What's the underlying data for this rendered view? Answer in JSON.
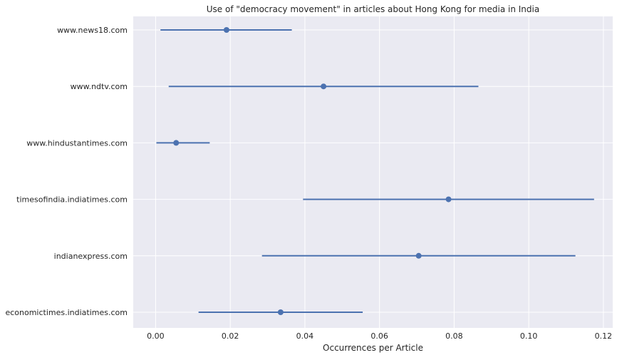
{
  "chart_data": {
    "type": "scatter",
    "subtype": "dot-with-interval",
    "orientation": "horizontal",
    "title": "Use of \"democracy movement\" in articles about Hong Kong for media in India",
    "xlabel": "Occurrences per Article",
    "ylabel": "",
    "xlim": [
      -0.006,
      0.1225
    ],
    "xticks": [
      "0.00",
      "0.02",
      "0.04",
      "0.06",
      "0.08",
      "0.10",
      "0.12"
    ],
    "xtick_values": [
      0,
      0.02,
      0.04,
      0.06,
      0.08,
      0.1,
      0.12
    ],
    "grid": true,
    "legend": "none",
    "categories": [
      "www.news18.com",
      "www.ndtv.com",
      "www.hindustantimes.com",
      "timesofindia.indiatimes.com",
      "indianexpress.com",
      "economictimes.indiatimes.com"
    ],
    "series": [
      {
        "values": [
          0.019,
          0.045,
          0.0055,
          0.0785,
          0.0705,
          0.0335
        ],
        "lower": [
          0.0013,
          0.0035,
          0.0002,
          0.0395,
          0.0285,
          0.0115
        ],
        "upper": [
          0.0365,
          0.0865,
          0.0145,
          0.1175,
          0.1125,
          0.0555
        ]
      }
    ],
    "colors": {
      "background": "#eaeaf2",
      "grid": "#ffffff",
      "series": "#4c72b0"
    }
  }
}
